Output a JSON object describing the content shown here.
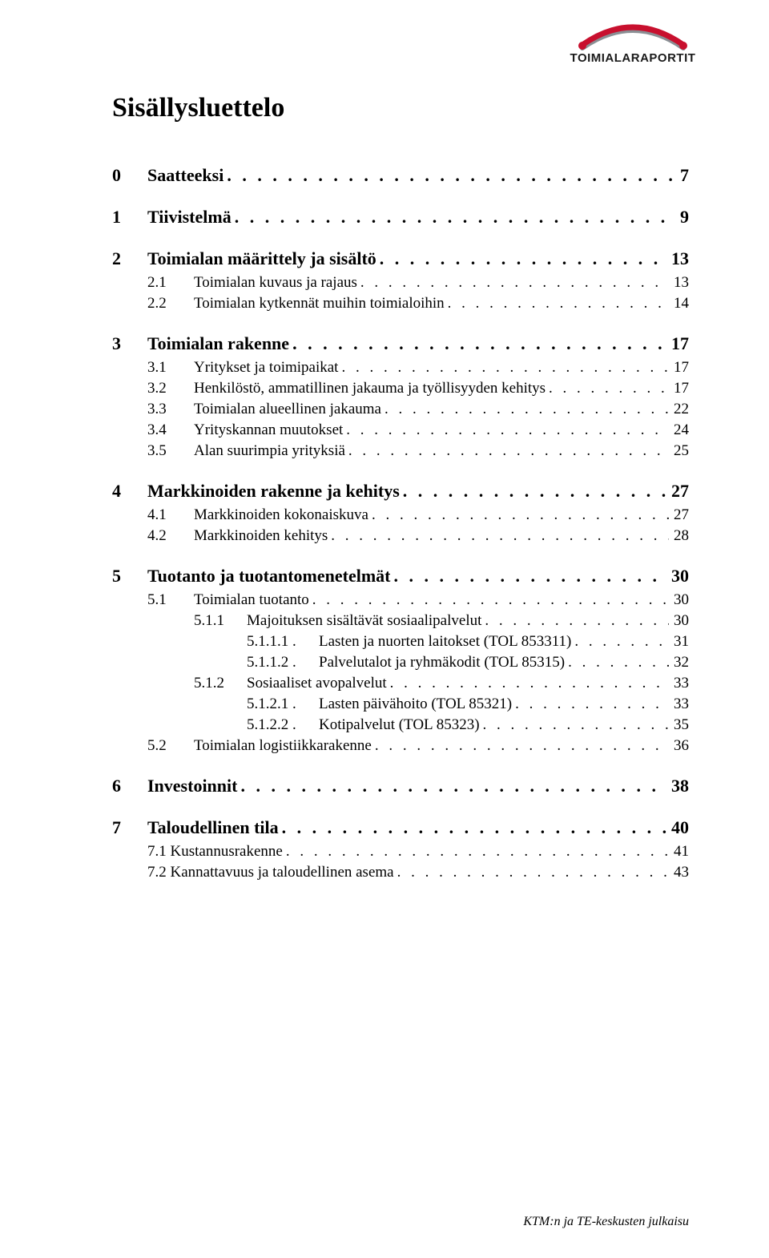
{
  "logo": {
    "text": "TOIMIALARAPORTIT",
    "arc_color": "#c8102e",
    "arc_shadow": "#8a8f94"
  },
  "title": "Sisällysluettelo",
  "footer": "KTM:n ja TE-keskusten julkaisu",
  "colors": {
    "text": "#000000",
    "background": "#ffffff"
  },
  "toc": [
    {
      "level": 0,
      "num": "0",
      "label": "Saatteeksi",
      "page": "7"
    },
    {
      "level": 0,
      "num": "1",
      "label": "Tiivistelmä",
      "page": "9"
    },
    {
      "level": 0,
      "num": "2",
      "label": "Toimialan määrittely ja sisältö",
      "page": "13"
    },
    {
      "level": 1,
      "num": "2.1",
      "label": "Toimialan kuvaus ja rajaus",
      "page": "13"
    },
    {
      "level": 1,
      "num": "2.2",
      "label": "Toimialan kytkennät muihin toimialoihin",
      "page": "14"
    },
    {
      "level": 0,
      "num": "3",
      "label": "Toimialan rakenne",
      "page": "17"
    },
    {
      "level": 1,
      "num": "3.1",
      "label": "Yritykset ja toimipaikat",
      "page": "17"
    },
    {
      "level": 1,
      "num": "3.2",
      "label": "Henkilöstö, ammatillinen jakauma ja työllisyyden kehitys",
      "page": "17"
    },
    {
      "level": 1,
      "num": "3.3",
      "label": "Toimialan alueellinen jakauma",
      "page": "22"
    },
    {
      "level": 1,
      "num": "3.4",
      "label": "Yrityskannan muutokset",
      "page": "24"
    },
    {
      "level": 1,
      "num": "3.5",
      "label": "Alan suurimpia yrityksiä",
      "page": "25"
    },
    {
      "level": 0,
      "num": "4",
      "label": "Markkinoiden rakenne ja kehitys",
      "page": "27"
    },
    {
      "level": 1,
      "num": "4.1",
      "label": "Markkinoiden kokonaiskuva",
      "page": "27"
    },
    {
      "level": 1,
      "num": "4.2",
      "label": "Markkinoiden kehitys",
      "page": "28"
    },
    {
      "level": 0,
      "num": "5",
      "label": "Tuotanto ja tuotantomenetelmät",
      "page": "30"
    },
    {
      "level": 1,
      "num": "5.1",
      "label": "Toimialan tuotanto",
      "page": "30"
    },
    {
      "level": 2,
      "num": "5.1.1",
      "label": "Majoituksen sisältävät sosiaalipalvelut",
      "page": "30"
    },
    {
      "level": 3,
      "num": "5.1.1.1 .",
      "label": "Lasten ja nuorten laitokset (TOL 853311)",
      "page": "31"
    },
    {
      "level": 3,
      "num": "5.1.1.2 .",
      "label": "Palvelutalot ja ryhmäkodit (TOL 85315)",
      "page": "32"
    },
    {
      "level": 2,
      "num": "5.1.2",
      "label": "Sosiaaliset avopalvelut",
      "page": "33"
    },
    {
      "level": 3,
      "num": "5.1.2.1 .",
      "label": "Lasten päivähoito (TOL 85321)",
      "page": "33"
    },
    {
      "level": 3,
      "num": "5.1.2.2 .",
      "label": "Kotipalvelut (TOL 85323)",
      "page": "35"
    },
    {
      "level": 1,
      "num": "5.2",
      "label": "Toimialan logistiikkarakenne",
      "page": "36"
    },
    {
      "level": 0,
      "num": "6",
      "label": "Investoinnit",
      "page": "38"
    },
    {
      "level": 0,
      "num": "7",
      "label": "Taloudellinen tila",
      "page": "40"
    },
    {
      "level": 1,
      "num": "",
      "label": "7.1 Kustannusrakenne",
      "page": "41",
      "nonum": true
    },
    {
      "level": 1,
      "num": "",
      "label": "7.2 Kannattavuus ja taloudellinen asema",
      "page": "43",
      "nonum": true
    }
  ]
}
